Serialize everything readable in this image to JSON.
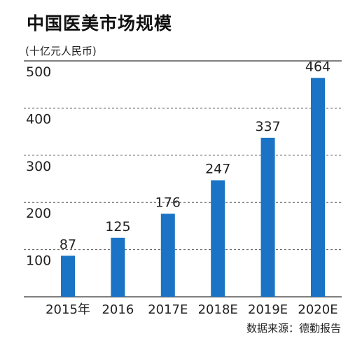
{
  "chart_data": {
    "type": "bar",
    "title": "中国医美市场规模",
    "unit_label": "(十亿元人民币)",
    "source": "数据来源：德勤报告",
    "categories": [
      "2015年",
      "2016",
      "2017E",
      "2018E",
      "2019E",
      "2020E"
    ],
    "values": [
      87,
      125,
      176,
      247,
      337,
      464
    ],
    "data_labels": [
      "87",
      "125",
      "176",
      "247",
      "337",
      "464"
    ],
    "yticks": [
      "100",
      "200",
      "300",
      "400",
      "500"
    ],
    "ytick_values": [
      100,
      200,
      300,
      400,
      500
    ],
    "ylim": [
      0,
      500
    ],
    "grid": "dashed horizontal",
    "bar_color": "#1a73c4"
  }
}
